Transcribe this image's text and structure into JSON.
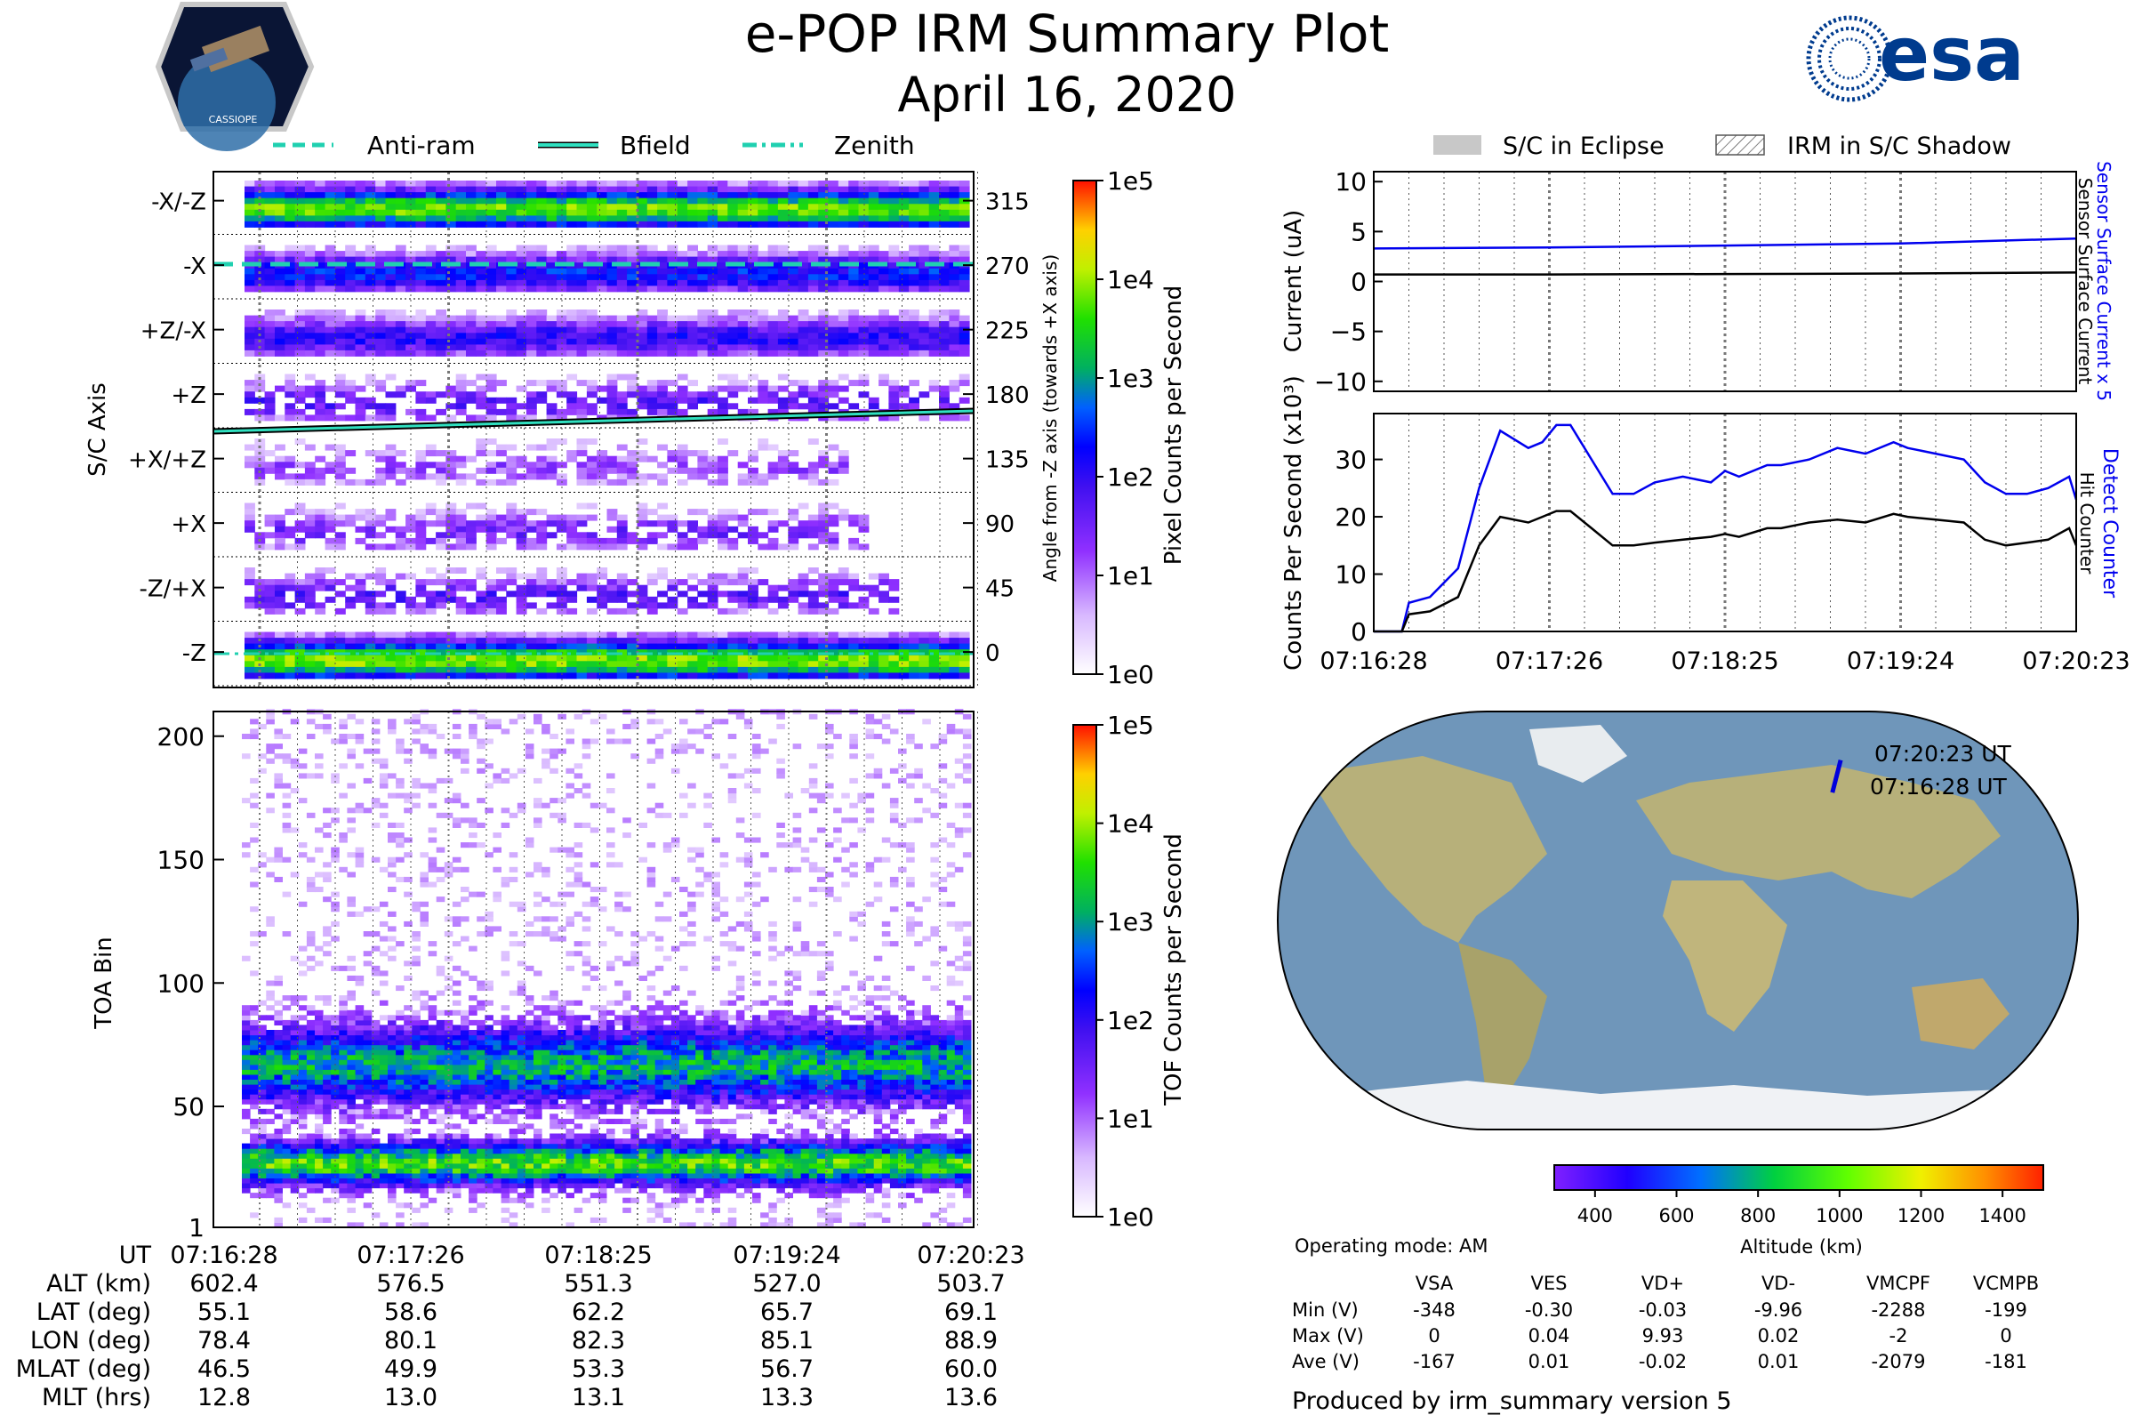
{
  "header": {
    "title": "e-POP IRM Summary Plot",
    "date": "April 16, 2020",
    "left_logo": "CASSIOPE",
    "right_logo": "esa"
  },
  "colors": {
    "blue_line": "#0000ee",
    "black_line": "#000000",
    "marker_teal": "#30e0c0",
    "ocean": "#6f96ba",
    "land": "#b7b07a",
    "ice": "#f0f2f5"
  },
  "chart_data": [
    {
      "id": "pixel_spectrogram",
      "type": "heatmap",
      "ylabel": "S/C Axis",
      "ylabel_right": "Angle from -Z axis (towards +X axis)",
      "row_labels": [
        "-X/-Z",
        "-X",
        "+Z/-X",
        "+Z",
        "+X/+Z",
        "+X",
        "-Z/+X",
        "-Z"
      ],
      "angles": [
        "315",
        "270",
        "225",
        "180",
        "135",
        "90",
        "45",
        "0"
      ],
      "row_intensity": [
        0.72,
        0.45,
        0.38,
        0.32,
        0.22,
        0.28,
        0.32,
        0.74
      ],
      "row_end_fraction": [
        1.0,
        1.0,
        1.0,
        1.0,
        0.82,
        0.86,
        0.9,
        1.0
      ],
      "legend": [
        "Anti-ram",
        "Bfield",
        "Zenith"
      ],
      "colorbar": {
        "label": "Pixel Counts per Second",
        "ticks": [
          "1e0",
          "1e1",
          "1e2",
          "1e3",
          "1e4",
          "1e5"
        ]
      }
    },
    {
      "id": "toa_spectrogram",
      "type": "heatmap",
      "ylabel": "TOA Bin",
      "yticks": [
        "1",
        "50",
        "100",
        "150",
        "200"
      ],
      "ylim": [
        1,
        210
      ],
      "bands": [
        {
          "center": 66,
          "halfwidth": 16
        },
        {
          "center": 26,
          "halfwidth": 9
        }
      ],
      "colorbar": {
        "label": "TOF Counts per Second",
        "ticks": [
          "1e0",
          "1e1",
          "1e2",
          "1e3",
          "1e4",
          "1e5"
        ]
      }
    },
    {
      "id": "current",
      "type": "line",
      "ylabel": "Current (uA)",
      "ylim": [
        -11,
        11
      ],
      "yticks": [
        "10",
        "5",
        "0",
        "−5",
        "−10"
      ],
      "right_label_blue": "Sensor Surface Current x 5",
      "right_label_black": "Sensor Surface Current",
      "legend": [
        "S/C in Eclipse",
        "IRM in S/C Shadow"
      ],
      "x": [
        0,
        0.25,
        0.5,
        0.75,
        1.0
      ],
      "series": [
        {
          "name": "Sensor Surface Current x 5",
          "values": [
            3.3,
            3.4,
            3.6,
            3.8,
            4.3
          ]
        },
        {
          "name": "Sensor Surface Current",
          "values": [
            0.7,
            0.7,
            0.75,
            0.8,
            0.9
          ]
        }
      ]
    },
    {
      "id": "counts",
      "type": "line",
      "ylabel": "Counts Per Second (x10³)",
      "ylim": [
        0,
        38
      ],
      "yticks": [
        "30",
        "20",
        "10",
        "0"
      ],
      "right_label_blue": "Detect Counter",
      "right_label_black": "Hit Counter",
      "xticks": [
        "07:16:28",
        "07:17:26",
        "07:18:25",
        "07:19:24",
        "07:20:23"
      ],
      "x": [
        0,
        0.04,
        0.05,
        0.08,
        0.12,
        0.15,
        0.18,
        0.22,
        0.24,
        0.26,
        0.28,
        0.31,
        0.34,
        0.37,
        0.4,
        0.44,
        0.48,
        0.5,
        0.52,
        0.56,
        0.58,
        0.62,
        0.66,
        0.7,
        0.74,
        0.76,
        0.8,
        0.84,
        0.87,
        0.9,
        0.93,
        0.96,
        0.99,
        1.0
      ],
      "series": [
        {
          "name": "Detect Counter",
          "values": [
            0,
            0,
            5,
            6,
            11,
            25,
            35,
            32,
            33,
            36,
            36,
            30,
            24,
            24,
            26,
            27,
            26,
            28,
            27,
            29,
            29,
            30,
            32,
            31,
            33,
            32,
            31,
            30,
            26,
            24,
            24,
            25,
            27,
            23
          ]
        },
        {
          "name": "Hit Counter",
          "values": [
            0,
            0,
            3,
            3.5,
            6,
            15,
            20,
            19,
            20,
            21,
            21,
            18,
            15,
            15,
            15.5,
            16,
            16.5,
            17,
            16.5,
            18,
            18,
            19,
            19.5,
            19,
            20.5,
            20,
            19.5,
            19,
            16,
            15,
            15.5,
            16,
            18,
            15
          ]
        }
      ]
    },
    {
      "id": "map",
      "type": "scatter",
      "track": {
        "lat_start": 55.1,
        "lat_end": 69.1,
        "lon_start": 78.4,
        "lon_end": 88.9
      },
      "label_end": "07:20:23 UT",
      "label_start": "07:16:28 UT",
      "colorbar": {
        "label": "Altitude (km)",
        "ticks": [
          "400",
          "600",
          "800",
          "1000",
          "1200",
          "1400"
        ]
      }
    }
  ],
  "ephemeris": {
    "columns": [
      "07:16:28",
      "07:17:26",
      "07:18:25",
      "07:19:24",
      "07:20:23"
    ],
    "rows": [
      {
        "label": "UT",
        "values": [
          "07:16:28",
          "07:17:26",
          "07:18:25",
          "07:19:24",
          "07:20:23"
        ]
      },
      {
        "label": "ALT (km)",
        "values": [
          "602.4",
          "576.5",
          "551.3",
          "527.0",
          "503.7"
        ]
      },
      {
        "label": "LAT (deg)",
        "values": [
          "55.1",
          "58.6",
          "62.2",
          "65.7",
          "69.1"
        ]
      },
      {
        "label": "LON (deg)",
        "values": [
          "78.4",
          "80.1",
          "82.3",
          "85.1",
          "88.9"
        ]
      },
      {
        "label": "MLAT (deg)",
        "values": [
          "46.5",
          "49.9",
          "53.3",
          "56.7",
          "60.0"
        ]
      },
      {
        "label": "MLT (hrs)",
        "values": [
          "12.8",
          "13.0",
          "13.1",
          "13.3",
          "13.6"
        ]
      }
    ]
  },
  "voltages": {
    "mode": "Operating mode: AM",
    "headers": [
      "VSA",
      "VES",
      "VD+",
      "VD-",
      "VMCPF",
      "VCMPB"
    ],
    "rows": [
      {
        "label": "Min (V)",
        "values": [
          "-348",
          "-0.30",
          "-0.03",
          "-9.96",
          "-2288",
          "-199"
        ]
      },
      {
        "label": "Max (V)",
        "values": [
          "0",
          "0.04",
          "9.93",
          "0.02",
          "-2",
          "0"
        ]
      },
      {
        "label": "Ave (V)",
        "values": [
          "-167",
          "0.01",
          "-0.02",
          "0.01",
          "-2079",
          "-181"
        ]
      }
    ]
  },
  "footer": "Produced by irm_summary version 5"
}
